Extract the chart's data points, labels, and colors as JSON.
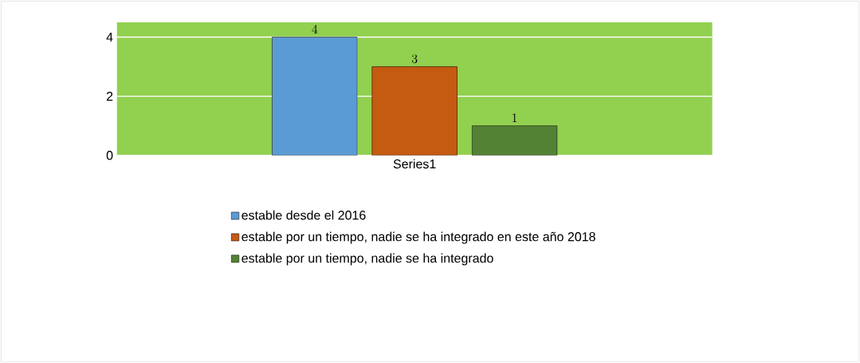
{
  "chart_data": {
    "type": "bar",
    "categories": [
      "Series1"
    ],
    "series": [
      {
        "name": "estable desde el 2016",
        "color": "#5b9bd5",
        "values": [
          4
        ]
      },
      {
        "name": "estable por un tiempo, nadie se ha integrado en este año 2018",
        "color": "#c55a11",
        "values": [
          3
        ]
      },
      {
        "name": "estable por un tiempo, nadie se ha integrado",
        "color": "#548235",
        "values": [
          1
        ]
      }
    ],
    "ylim": [
      0,
      4.5
    ],
    "yticks": [
      0,
      2,
      4
    ],
    "grid": "y",
    "legend": "bottom",
    "data_labels": true
  }
}
